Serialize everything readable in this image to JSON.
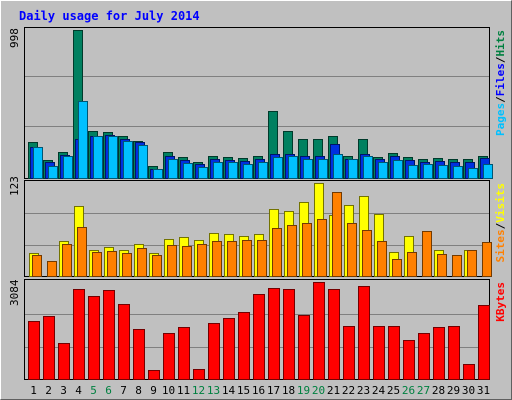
{
  "chart_data": [
    {
      "type": "bar",
      "title": "Daily usage for July 2014",
      "panel": "hits-files-pages",
      "ymax_label": "998",
      "legend": [
        {
          "label": "Pages",
          "color": "#00c0ff"
        },
        {
          "label": "Files",
          "color": "#0000ff"
        },
        {
          "label": "Hits",
          "color": "#008040"
        }
      ],
      "legend_separator": "/",
      "categories": [
        "1",
        "2",
        "3",
        "4",
        "5",
        "6",
        "7",
        "8",
        "9",
        "10",
        "11",
        "12",
        "13",
        "14",
        "15",
        "16",
        "17",
        "18",
        "19",
        "20",
        "21",
        "22",
        "23",
        "24",
        "25",
        "26",
        "27",
        "28",
        "29",
        "30",
        "31"
      ],
      "series": [
        {
          "name": "Hits",
          "color": "#008060",
          "values": [
            245,
            120,
            175,
            998,
            315,
            310,
            280,
            250,
            80,
            175,
            140,
            110,
            145,
            140,
            135,
            145,
            450,
            320,
            260,
            265,
            280,
            150,
            265,
            140,
            170,
            140,
            130,
            135,
            130,
            130,
            145
          ]
        },
        {
          "name": "Files",
          "color": "#0030e0",
          "values": [
            210,
            110,
            155,
            260,
            285,
            290,
            260,
            240,
            60,
            150,
            120,
            95,
            125,
            120,
            115,
            125,
            165,
            160,
            150,
            150,
            230,
            130,
            165,
            130,
            145,
            120,
            110,
            115,
            110,
            110,
            135
          ]
        },
        {
          "name": "Pages",
          "color": "#00c0ff",
          "values": [
            210,
            80,
            150,
            520,
            285,
            285,
            250,
            220,
            60,
            125,
            100,
            75,
            105,
            110,
            95,
            110,
            140,
            150,
            130,
            125,
            165,
            125,
            145,
            110,
            120,
            90,
            95,
            90,
            80,
            65,
            95
          ]
        }
      ]
    },
    {
      "type": "bar",
      "panel": "visits-sites",
      "ymax_label": "123",
      "legend": [
        {
          "label": "Sites",
          "color": "#ff8000"
        },
        {
          "label": "Visits",
          "color": "#ffff00"
        }
      ],
      "legend_separator": "/",
      "series": [
        {
          "name": "Visits",
          "color": "#ffff00",
          "values": [
            30,
            0,
            46,
            93,
            35,
            38,
            35,
            42,
            30,
            49,
            51,
            48,
            57,
            56,
            53,
            55,
            89,
            86,
            98,
            123,
            81,
            94,
            106,
            82,
            32,
            53,
            0,
            35,
            0,
            35,
            0
          ]
        },
        {
          "name": "Sites",
          "color": "#ff8000",
          "values": [
            28,
            20,
            42,
            65,
            32,
            33,
            30,
            37,
            28,
            41,
            40,
            42,
            46,
            46,
            48,
            47,
            64,
            67,
            70,
            75,
            111,
            70,
            61,
            46,
            22,
            32,
            59,
            29,
            28,
            34,
            45
          ]
        }
      ]
    },
    {
      "type": "bar",
      "panel": "kbytes",
      "ymax_label": "3084",
      "legend": [
        {
          "label": "KBytes",
          "color": "#ff0000"
        }
      ],
      "series": [
        {
          "name": "KBytes",
          "color": "#ff0000",
          "values": [
            1850,
            2010,
            1140,
            2850,
            2650,
            2820,
            2390,
            1580,
            300,
            1450,
            1650,
            320,
            1770,
            1950,
            2120,
            2710,
            2900,
            2850,
            2030,
            3084,
            2860,
            1690,
            2960,
            1690,
            1690,
            1250,
            1450,
            1660,
            1690,
            470,
            2360
          ]
        }
      ]
    }
  ],
  "x_tick_colors": [
    "#000000",
    "#000000",
    "#000000",
    "#000000",
    "#008040",
    "#008040",
    "#000000",
    "#000000",
    "#000000",
    "#000000",
    "#000000",
    "#008040",
    "#008040",
    "#000000",
    "#000000",
    "#000000",
    "#000000",
    "#000000",
    "#008040",
    "#008040",
    "#000000",
    "#000000",
    "#000000",
    "#000000",
    "#000000",
    "#008040",
    "#008040",
    "#000000",
    "#000000",
    "#000000",
    "#000000"
  ]
}
